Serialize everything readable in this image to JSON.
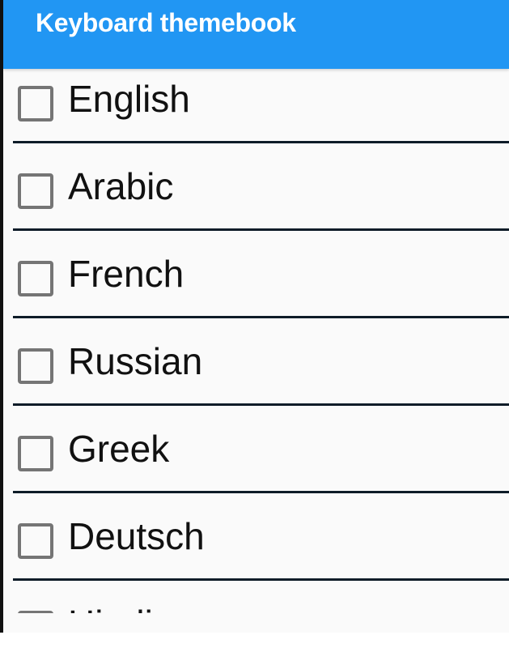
{
  "app_bar": {
    "title": "Keyboard themebook",
    "color": "#2196F3"
  },
  "languages": [
    {
      "label": "English",
      "checked": false
    },
    {
      "label": "Arabic",
      "checked": false
    },
    {
      "label": "French",
      "checked": false
    },
    {
      "label": "Russian",
      "checked": false
    },
    {
      "label": "Greek",
      "checked": false
    },
    {
      "label": "Deutsch",
      "checked": false
    },
    {
      "label": "Hindi",
      "checked": false
    }
  ]
}
